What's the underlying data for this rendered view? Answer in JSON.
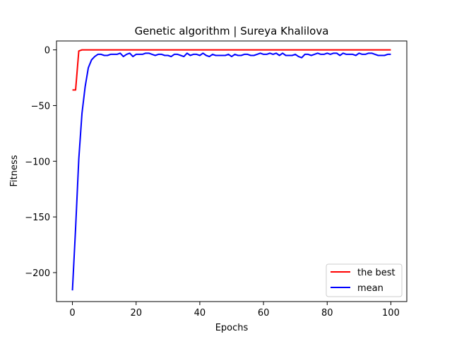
{
  "chart_data": {
    "type": "line",
    "title": "Genetic algorithm | Sureya Khalilova",
    "xlabel": "Epochs",
    "ylabel": "Fitness",
    "xlim": [
      -5,
      105
    ],
    "ylim": [
      -226,
      8
    ],
    "xticks": [
      0,
      20,
      40,
      60,
      80,
      100
    ],
    "yticks": [
      0,
      -50,
      -100,
      -150,
      -200
    ],
    "xtick_labels": [
      "0",
      "20",
      "40",
      "60",
      "80",
      "100"
    ],
    "ytick_labels": [
      "0",
      "−50",
      "−100",
      "−150",
      "−200"
    ],
    "grid": false,
    "legend_position": "lower-right",
    "series": [
      {
        "name": "the best",
        "color": "#ff0000",
        "x": [
          0,
          1,
          2,
          3,
          4,
          5,
          6,
          7,
          8,
          9,
          10,
          11,
          12,
          13,
          14,
          15,
          16,
          17,
          18,
          19,
          20,
          21,
          22,
          23,
          24,
          25,
          26,
          27,
          28,
          29,
          30,
          31,
          32,
          33,
          34,
          35,
          36,
          37,
          38,
          39,
          40,
          41,
          42,
          43,
          44,
          45,
          46,
          47,
          48,
          49,
          50,
          51,
          52,
          53,
          54,
          55,
          56,
          57,
          58,
          59,
          60,
          61,
          62,
          63,
          64,
          65,
          66,
          67,
          68,
          69,
          70,
          71,
          72,
          73,
          74,
          75,
          76,
          77,
          78,
          79,
          80,
          81,
          82,
          83,
          84,
          85,
          86,
          87,
          88,
          89,
          90,
          91,
          92,
          93,
          94,
          95,
          96,
          97,
          98,
          99,
          100
        ],
        "values": [
          -36,
          -36,
          -1,
          0,
          0,
          0,
          0,
          0,
          0,
          0,
          0,
          0,
          0,
          0,
          0,
          0,
          0,
          0,
          0,
          0,
          0,
          0,
          0,
          0,
          0,
          0,
          0,
          0,
          0,
          0,
          0,
          0,
          0,
          0,
          0,
          0,
          0,
          0,
          0,
          0,
          0,
          0,
          0,
          0,
          0,
          0,
          0,
          0,
          0,
          0,
          0,
          0,
          0,
          0,
          0,
          0,
          0,
          0,
          0,
          0,
          0,
          0,
          0,
          0,
          0,
          0,
          0,
          0,
          0,
          0,
          0,
          0,
          0,
          0,
          0,
          0,
          0,
          0,
          0,
          0,
          0,
          0,
          0,
          0,
          0,
          0,
          0,
          0,
          0,
          0,
          0,
          0,
          0,
          0,
          0,
          0,
          0,
          0,
          0,
          0,
          0
        ]
      },
      {
        "name": "mean",
        "color": "#0000ff",
        "x": [
          0,
          1,
          2,
          3,
          4,
          5,
          6,
          7,
          8,
          9,
          10,
          11,
          12,
          13,
          14,
          15,
          16,
          17,
          18,
          19,
          20,
          21,
          22,
          23,
          24,
          25,
          26,
          27,
          28,
          29,
          30,
          31,
          32,
          33,
          34,
          35,
          36,
          37,
          38,
          39,
          40,
          41,
          42,
          43,
          44,
          45,
          46,
          47,
          48,
          49,
          50,
          51,
          52,
          53,
          54,
          55,
          56,
          57,
          58,
          59,
          60,
          61,
          62,
          63,
          64,
          65,
          66,
          67,
          68,
          69,
          70,
          71,
          72,
          73,
          74,
          75,
          76,
          77,
          78,
          79,
          80,
          81,
          82,
          83,
          84,
          85,
          86,
          87,
          88,
          89,
          90,
          91,
          92,
          93,
          94,
          95,
          96,
          97,
          98,
          99,
          100
        ],
        "values": [
          -216,
          -160,
          -98,
          -57,
          -33,
          -16,
          -9,
          -6,
          -4,
          -4,
          -5,
          -5,
          -4,
          -4,
          -4,
          -3,
          -6,
          -4,
          -3,
          -6,
          -4,
          -4,
          -4,
          -3,
          -3,
          -4,
          -5,
          -4,
          -4,
          -5,
          -5,
          -6,
          -4,
          -4,
          -5,
          -6,
          -3,
          -5,
          -4,
          -4,
          -5,
          -3,
          -5,
          -6,
          -4,
          -5,
          -5,
          -5,
          -5,
          -4,
          -6,
          -4,
          -5,
          -5,
          -4,
          -4,
          -5,
          -5,
          -4,
          -3,
          -4,
          -4,
          -3,
          -4,
          -3,
          -5,
          -3,
          -5,
          -5,
          -5,
          -4,
          -6,
          -7,
          -4,
          -4,
          -5,
          -4,
          -3,
          -4,
          -4,
          -3,
          -4,
          -3,
          -3,
          -5,
          -3,
          -4,
          -4,
          -4,
          -5,
          -3,
          -4,
          -4,
          -3,
          -3,
          -4,
          -5,
          -5,
          -5,
          -4,
          -4
        ]
      }
    ]
  }
}
